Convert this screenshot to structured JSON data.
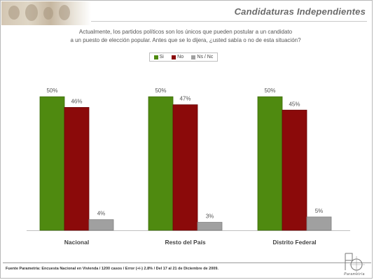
{
  "header": {
    "title": "Candidaturas Independientes"
  },
  "question": {
    "line1": "Actualmente, los partidos políticos son los únicos que pueden postular a un candidato",
    "line2": "a un puesto de elección popular. Antes que se lo dijera, ¿usted sabía o no de esta situación?"
  },
  "chart_data": {
    "type": "bar",
    "title": "",
    "categories": [
      "Nacional",
      "Resto del País",
      "Distrito Federal"
    ],
    "series": [
      {
        "name": "Si",
        "color": "#4f8a10",
        "values": [
          50,
          50,
          50
        ]
      },
      {
        "name": "No",
        "color": "#8b0a0a",
        "values": [
          46,
          47,
          45
        ]
      },
      {
        "name": "Ns / Nc",
        "color": "#a0a0a0",
        "values": [
          4,
          3,
          5
        ]
      }
    ],
    "value_suffix": "%",
    "ylim": [
      0,
      60
    ],
    "grid": false,
    "legend_position": "top-center"
  },
  "footer": {
    "source": "Fuente Parametría: Encuesta Nacional en Vivienda / 1200 casos / Error (+/-) 2.8% / Del 17 al 21 de Diciembre de 2009."
  },
  "logo": {
    "name": "Parametría",
    "icon": "parametria-logo-icon"
  }
}
